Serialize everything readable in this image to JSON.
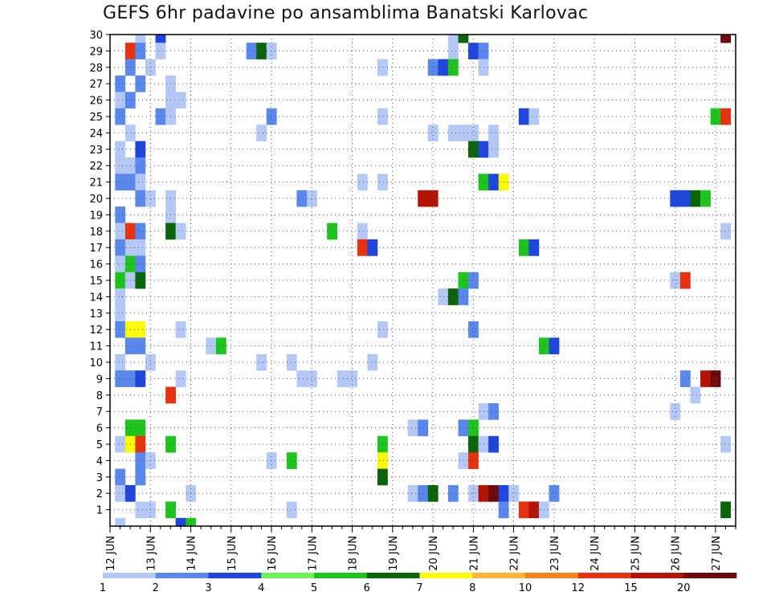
{
  "chart_data": {
    "type": "heatmap",
    "title": "GEFS 6hr padavine po ansamblima Banatski Karlovac",
    "x_ticks": [
      "12 JUN",
      "13 JUN",
      "14 JUN",
      "15 JUN",
      "16 JUN",
      "17 JUN",
      "18 JUN",
      "19 JUN",
      "20 JUN",
      "21 JUN",
      "22 JUN",
      "23 JUN",
      "24 JUN",
      "25 JUN",
      "26 JUN",
      "27 JUN"
    ],
    "y_ticks": [
      "1",
      "2",
      "3",
      "4",
      "5",
      "6",
      "7",
      "8",
      "9",
      "10",
      "11",
      "12",
      "13",
      "14",
      "15",
      "16",
      "17",
      "18",
      "19",
      "20",
      "21",
      "22",
      "23",
      "24",
      "25",
      "26",
      "27",
      "28",
      "29",
      "30"
    ],
    "ylim": [
      0,
      30
    ],
    "grid": true,
    "colorbar": {
      "labels": [
        "1",
        "2",
        "3",
        "4",
        "5",
        "6",
        "7",
        "8",
        "10",
        "12",
        "15",
        "20"
      ],
      "colors": [
        "#b4c8f5",
        "#5a87eb",
        "#1e46dc",
        "#6ef05a",
        "#1ec31e",
        "#0a640a",
        "#fafa0a",
        "#fab43c",
        "#f5821e",
        "#e6320f",
        "#b41405",
        "#6e0a0a"
      ]
    },
    "cells_note": "each cell: [ensemble member (y), 6-hour step index from 12 JUN 00 UTC, colorbar bin 0..11]",
    "cells": [
      [
        30,
        3,
        0
      ],
      [
        30,
        5,
        2
      ],
      [
        30,
        34,
        0
      ],
      [
        30,
        35,
        5
      ],
      [
        30,
        61,
        11
      ],
      [
        29,
        2,
        9
      ],
      [
        29,
        3,
        1
      ],
      [
        29,
        5,
        0
      ],
      [
        29,
        14,
        1
      ],
      [
        29,
        15,
        5
      ],
      [
        29,
        16,
        0
      ],
      [
        29,
        34,
        0
      ],
      [
        29,
        36,
        2
      ],
      [
        29,
        37,
        1
      ],
      [
        28,
        2,
        1
      ],
      [
        28,
        4,
        0
      ],
      [
        28,
        27,
        0
      ],
      [
        28,
        32,
        1
      ],
      [
        28,
        33,
        2
      ],
      [
        28,
        34,
        4
      ],
      [
        28,
        37,
        0
      ],
      [
        27,
        1,
        1
      ],
      [
        27,
        3,
        1
      ],
      [
        27,
        6,
        0
      ],
      [
        26,
        1,
        0
      ],
      [
        26,
        2,
        1
      ],
      [
        26,
        6,
        0
      ],
      [
        26,
        7,
        0
      ],
      [
        25,
        1,
        1
      ],
      [
        25,
        5,
        1
      ],
      [
        25,
        6,
        0
      ],
      [
        25,
        16,
        1
      ],
      [
        25,
        27,
        0
      ],
      [
        25,
        41,
        2
      ],
      [
        25,
        42,
        0
      ],
      [
        25,
        60,
        4
      ],
      [
        25,
        61,
        9
      ],
      [
        24,
        2,
        0
      ],
      [
        24,
        15,
        0
      ],
      [
        24,
        32,
        0
      ],
      [
        24,
        34,
        0
      ],
      [
        24,
        35,
        0
      ],
      [
        24,
        36,
        0
      ],
      [
        24,
        38,
        0
      ],
      [
        23,
        1,
        0
      ],
      [
        23,
        3,
        2
      ],
      [
        23,
        36,
        5
      ],
      [
        23,
        37,
        2
      ],
      [
        23,
        38,
        0
      ],
      [
        22,
        1,
        0
      ],
      [
        22,
        2,
        0
      ],
      [
        22,
        3,
        1
      ],
      [
        21,
        1,
        1
      ],
      [
        21,
        2,
        1
      ],
      [
        21,
        3,
        0
      ],
      [
        21,
        25,
        0
      ],
      [
        21,
        27,
        0
      ],
      [
        21,
        37,
        4
      ],
      [
        21,
        38,
        2
      ],
      [
        21,
        39,
        6
      ],
      [
        20,
        3,
        1
      ],
      [
        20,
        4,
        0
      ],
      [
        20,
        6,
        0
      ],
      [
        20,
        19,
        1
      ],
      [
        20,
        20,
        0
      ],
      [
        20,
        31,
        10
      ],
      [
        20,
        32,
        10
      ],
      [
        20,
        56,
        2
      ],
      [
        20,
        57,
        2
      ],
      [
        20,
        58,
        5
      ],
      [
        20,
        59,
        4
      ],
      [
        19,
        1,
        1
      ],
      [
        19,
        6,
        0
      ],
      [
        18,
        1,
        0
      ],
      [
        18,
        2,
        9
      ],
      [
        18,
        3,
        1
      ],
      [
        18,
        6,
        5
      ],
      [
        18,
        7,
        0
      ],
      [
        18,
        22,
        4
      ],
      [
        18,
        25,
        0
      ],
      [
        18,
        61,
        0
      ],
      [
        17,
        1,
        1
      ],
      [
        17,
        2,
        0
      ],
      [
        17,
        3,
        0
      ],
      [
        17,
        25,
        9
      ],
      [
        17,
        26,
        2
      ],
      [
        17,
        41,
        4
      ],
      [
        17,
        42,
        2
      ],
      [
        16,
        1,
        0
      ],
      [
        16,
        2,
        4
      ],
      [
        16,
        3,
        1
      ],
      [
        15,
        1,
        4
      ],
      [
        15,
        2,
        0
      ],
      [
        15,
        3,
        5
      ],
      [
        15,
        35,
        4
      ],
      [
        15,
        36,
        1
      ],
      [
        15,
        56,
        0
      ],
      [
        15,
        57,
        9
      ],
      [
        14,
        1,
        0
      ],
      [
        14,
        33,
        0
      ],
      [
        14,
        34,
        5
      ],
      [
        14,
        35,
        1
      ],
      [
        13,
        1,
        0
      ],
      [
        12,
        1,
        1
      ],
      [
        12,
        2,
        6
      ],
      [
        12,
        3,
        6
      ],
      [
        12,
        7,
        0
      ],
      [
        12,
        27,
        0
      ],
      [
        12,
        36,
        1
      ],
      [
        11,
        2,
        1
      ],
      [
        11,
        3,
        1
      ],
      [
        11,
        10,
        0
      ],
      [
        11,
        11,
        4
      ],
      [
        11,
        43,
        4
      ],
      [
        11,
        44,
        2
      ],
      [
        10,
        1,
        0
      ],
      [
        10,
        4,
        0
      ],
      [
        10,
        15,
        0
      ],
      [
        10,
        18,
        0
      ],
      [
        10,
        26,
        0
      ],
      [
        9,
        1,
        1
      ],
      [
        9,
        2,
        1
      ],
      [
        9,
        3,
        2
      ],
      [
        9,
        7,
        0
      ],
      [
        9,
        19,
        0
      ],
      [
        9,
        20,
        0
      ],
      [
        9,
        23,
        0
      ],
      [
        9,
        24,
        0
      ],
      [
        9,
        57,
        1
      ],
      [
        9,
        59,
        10
      ],
      [
        9,
        60,
        11
      ],
      [
        8,
        6,
        9
      ],
      [
        8,
        58,
        0
      ],
      [
        7,
        37,
        0
      ],
      [
        7,
        38,
        1
      ],
      [
        7,
        56,
        0
      ],
      [
        6,
        2,
        4
      ],
      [
        6,
        3,
        4
      ],
      [
        6,
        30,
        0
      ],
      [
        6,
        31,
        1
      ],
      [
        6,
        35,
        1
      ],
      [
        6,
        36,
        4
      ],
      [
        5,
        1,
        0
      ],
      [
        5,
        2,
        6
      ],
      [
        5,
        3,
        9
      ],
      [
        5,
        6,
        4
      ],
      [
        5,
        27,
        4
      ],
      [
        5,
        36,
        5
      ],
      [
        5,
        37,
        0
      ],
      [
        5,
        38,
        2
      ],
      [
        5,
        61,
        0
      ],
      [
        4,
        3,
        1
      ],
      [
        4,
        4,
        0
      ],
      [
        4,
        16,
        0
      ],
      [
        4,
        18,
        4
      ],
      [
        4,
        27,
        6
      ],
      [
        4,
        35,
        0
      ],
      [
        4,
        36,
        9
      ],
      [
        3,
        1,
        1
      ],
      [
        3,
        3,
        1
      ],
      [
        3,
        27,
        5
      ],
      [
        2,
        1,
        0
      ],
      [
        2,
        2,
        2
      ],
      [
        2,
        8,
        0
      ],
      [
        2,
        30,
        0
      ],
      [
        2,
        31,
        1
      ],
      [
        2,
        32,
        5
      ],
      [
        2,
        34,
        1
      ],
      [
        2,
        36,
        0
      ],
      [
        2,
        37,
        10
      ],
      [
        2,
        38,
        11
      ],
      [
        2,
        39,
        2
      ],
      [
        2,
        40,
        0
      ],
      [
        2,
        44,
        1
      ],
      [
        1,
        3,
        0
      ],
      [
        1,
        4,
        0
      ],
      [
        1,
        6,
        4
      ],
      [
        1,
        18,
        0
      ],
      [
        1,
        39,
        1
      ],
      [
        1,
        41,
        9
      ],
      [
        1,
        42,
        10
      ],
      [
        1,
        43,
        0
      ],
      [
        1,
        61,
        5
      ],
      [
        0,
        1,
        0
      ],
      [
        0,
        7,
        2
      ],
      [
        0,
        8,
        4
      ]
    ]
  }
}
